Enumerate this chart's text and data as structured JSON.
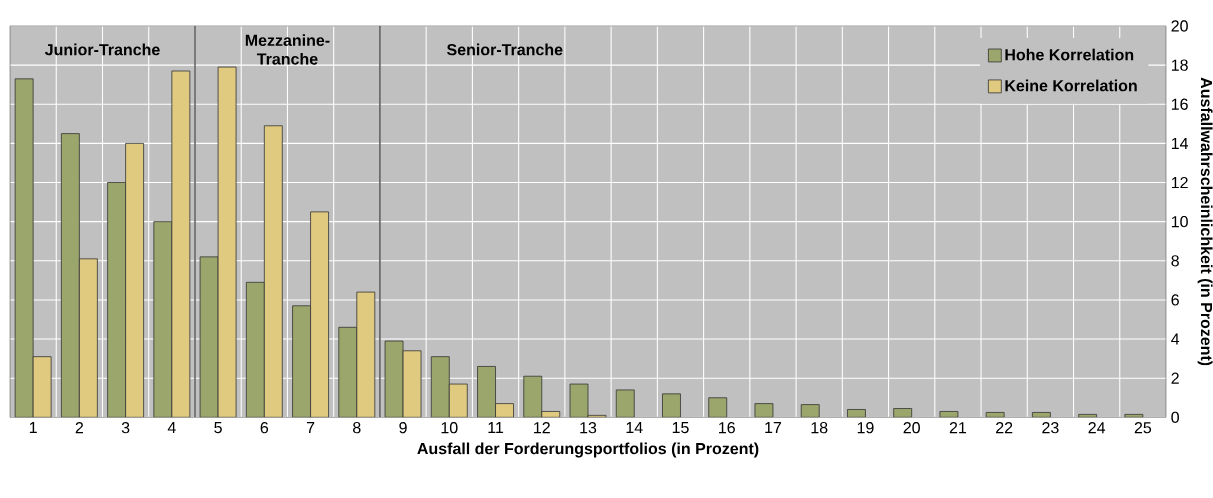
{
  "chart_data": {
    "type": "bar",
    "xlabel": "Ausfall der Forderungsportfolios (in Prozent)",
    "ylabel": "Ausfallwahrscheinlichkeit (in Prozent)",
    "x": [
      1,
      2,
      3,
      4,
      5,
      6,
      7,
      8,
      9,
      10,
      11,
      12,
      13,
      14,
      15,
      16,
      17,
      18,
      19,
      20,
      21,
      22,
      23,
      24,
      25
    ],
    "xlim": [
      0.5,
      25.5
    ],
    "xticks": [
      1,
      2,
      3,
      4,
      5,
      6,
      7,
      8,
      9,
      10,
      11,
      12,
      13,
      14,
      15,
      16,
      17,
      18,
      19,
      20,
      21,
      22,
      23,
      24,
      25
    ],
    "ylim": [
      0,
      20
    ],
    "yticks": [
      0,
      2,
      4,
      6,
      8,
      10,
      12,
      14,
      16,
      18,
      20
    ],
    "series": [
      {
        "name": "Hohe Korrelation",
        "color": "#9aa66b",
        "values": [
          17.3,
          14.5,
          12.0,
          10.0,
          8.2,
          6.9,
          5.7,
          4.6,
          3.9,
          3.1,
          2.6,
          2.1,
          1.7,
          1.4,
          1.2,
          1.0,
          0.7,
          0.65,
          0.4,
          0.45,
          0.3,
          0.25,
          0.25,
          0.15,
          0.15
        ]
      },
      {
        "name": "Keine Korrelation",
        "color": "#dfca80",
        "values": [
          3.1,
          8.1,
          14.0,
          17.7,
          17.9,
          14.9,
          10.5,
          6.4,
          3.4,
          1.7,
          0.7,
          0.3,
          0.1,
          null,
          null,
          null,
          null,
          null,
          null,
          null,
          null,
          null,
          null,
          null,
          null
        ]
      }
    ],
    "ref_lines": [
      {
        "axis": "x",
        "value": 4.5,
        "color": "#404040"
      },
      {
        "axis": "x",
        "value": 8.5,
        "color": "#404040"
      }
    ],
    "annotations": [
      "Junior-Tranche",
      "Mezzanine-Tranche",
      "Senior-Tranche"
    ],
    "grid": true,
    "legend": "top right"
  }
}
